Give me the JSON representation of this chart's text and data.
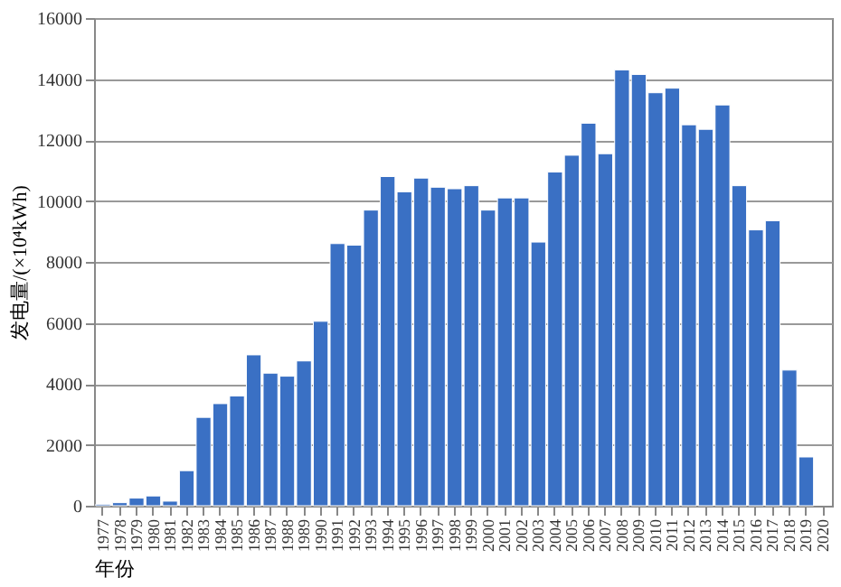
{
  "chart_data": {
    "type": "bar",
    "xlabel": "年份",
    "ylabel": "发电量/(×10⁴kWh)",
    "categories": [
      "1977",
      "1978",
      "1979",
      "1980",
      "1981",
      "1982",
      "1983",
      "1984",
      "1985",
      "1986",
      "1987",
      "1988",
      "1989",
      "1990",
      "1991",
      "1992",
      "1993",
      "1994",
      "1995",
      "1996",
      "1997",
      "1998",
      "1999",
      "2000",
      "2001",
      "2002",
      "2003",
      "2004",
      "2005",
      "2006",
      "2007",
      "2008",
      "2009",
      "2010",
      "2011",
      "2012",
      "2013",
      "2014",
      "2015",
      "2016",
      "2017",
      "2018",
      "2019",
      "2020"
    ],
    "values": [
      50,
      100,
      250,
      320,
      150,
      1150,
      2900,
      3350,
      3600,
      4950,
      4350,
      4250,
      4750,
      6050,
      8600,
      8550,
      9700,
      10800,
      10300,
      10750,
      10450,
      10400,
      10500,
      9700,
      10100,
      10100,
      8650,
      10950,
      11500,
      12550,
      11550,
      14300,
      14150,
      13550,
      13700,
      12500,
      12350,
      13150,
      10500,
      9050,
      9350,
      4450,
      1600,
      null
    ],
    "color": "#3a70c4",
    "ylim": [
      0,
      16000
    ],
    "yticks": [
      0,
      2000,
      4000,
      6000,
      8000,
      10000,
      12000,
      14000,
      16000
    ],
    "grid": "y"
  }
}
